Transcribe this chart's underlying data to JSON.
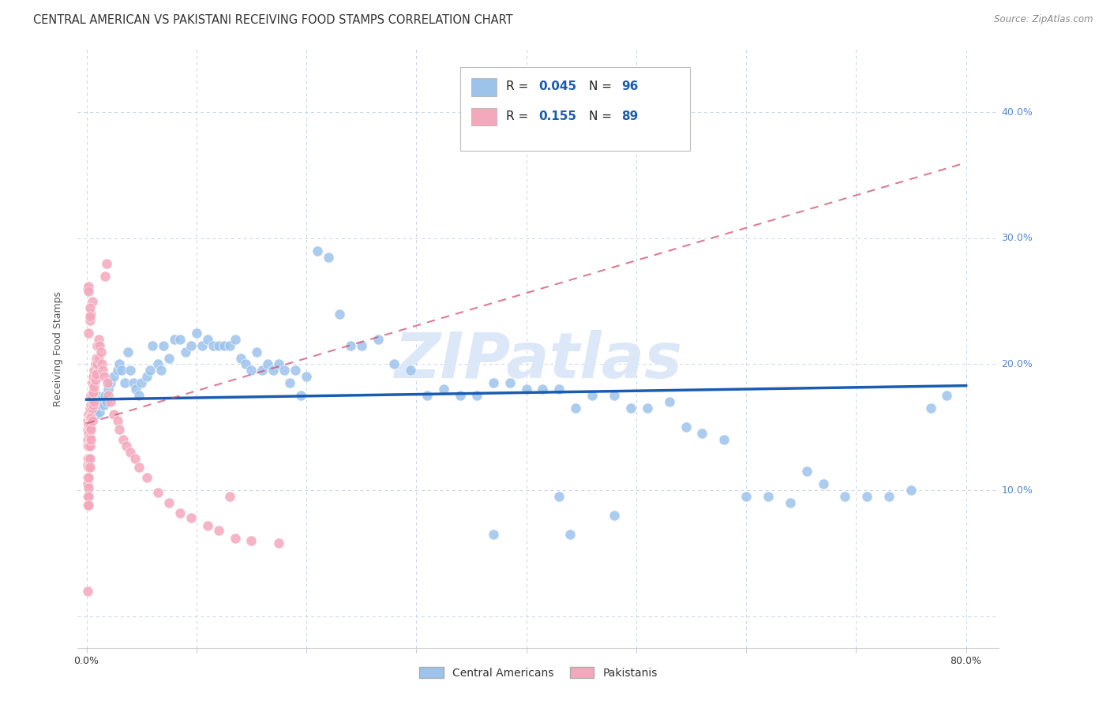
{
  "title": "CENTRAL AMERICAN VS PAKISTANI RECEIVING FOOD STAMPS CORRELATION CHART",
  "source": "Source: ZipAtlas.com",
  "ylabel": "Receiving Food Stamps",
  "x_ticks": [
    0.0,
    0.1,
    0.2,
    0.3,
    0.4,
    0.5,
    0.6,
    0.7,
    0.8
  ],
  "x_tick_labels": [
    "0.0%",
    "",
    "",
    "",
    "",
    "",
    "",
    "",
    "80.0%"
  ],
  "y_ticks": [
    0.0,
    0.1,
    0.2,
    0.3,
    0.4
  ],
  "y_tick_labels_right": [
    "",
    "10.0%",
    "20.0%",
    "30.0%",
    "40.0%"
  ],
  "xlim": [
    -0.008,
    0.83
  ],
  "ylim": [
    -0.025,
    0.45
  ],
  "legend_blue_label": "Central Americans",
  "legend_pink_label": "Pakistanis",
  "R_blue": 0.045,
  "N_blue": 96,
  "R_pink": 0.155,
  "N_pink": 89,
  "blue_color": "#9dc3eb",
  "pink_color": "#f4a8bc",
  "blue_line_color": "#1a5cb0",
  "pink_line_color": "#d05070",
  "watermark": "ZIPatlas",
  "watermark_color": "#dce8f8",
  "background_color": "#ffffff",
  "grid_color": "#c8d4e8",
  "title_color": "#333333",
  "source_color": "#888888",
  "ytick_color": "#5588cc",
  "xtick_color": "#333333",
  "blue_x": [
    0.005,
    0.007,
    0.009,
    0.01,
    0.012,
    0.013,
    0.015,
    0.016,
    0.017,
    0.018,
    0.02,
    0.022,
    0.025,
    0.028,
    0.03,
    0.032,
    0.035,
    0.038,
    0.04,
    0.043,
    0.045,
    0.048,
    0.05,
    0.055,
    0.058,
    0.06,
    0.065,
    0.068,
    0.07,
    0.075,
    0.08,
    0.085,
    0.09,
    0.095,
    0.1,
    0.105,
    0.11,
    0.115,
    0.12,
    0.125,
    0.13,
    0.135,
    0.14,
    0.145,
    0.15,
    0.155,
    0.16,
    0.165,
    0.17,
    0.175,
    0.18,
    0.185,
    0.19,
    0.195,
    0.2,
    0.21,
    0.22,
    0.23,
    0.24,
    0.25,
    0.265,
    0.28,
    0.295,
    0.31,
    0.325,
    0.34,
    0.355,
    0.37,
    0.385,
    0.4,
    0.415,
    0.43,
    0.445,
    0.46,
    0.48,
    0.495,
    0.51,
    0.53,
    0.545,
    0.56,
    0.58,
    0.6,
    0.62,
    0.64,
    0.655,
    0.67,
    0.69,
    0.71,
    0.73,
    0.75,
    0.768,
    0.782,
    0.43,
    0.48,
    0.37,
    0.44
  ],
  "blue_y": [
    0.17,
    0.165,
    0.16,
    0.175,
    0.162,
    0.168,
    0.172,
    0.168,
    0.175,
    0.17,
    0.18,
    0.185,
    0.19,
    0.195,
    0.2,
    0.195,
    0.185,
    0.21,
    0.195,
    0.185,
    0.18,
    0.175,
    0.185,
    0.19,
    0.195,
    0.215,
    0.2,
    0.195,
    0.215,
    0.205,
    0.22,
    0.22,
    0.21,
    0.215,
    0.225,
    0.215,
    0.22,
    0.215,
    0.215,
    0.215,
    0.215,
    0.22,
    0.205,
    0.2,
    0.195,
    0.21,
    0.195,
    0.2,
    0.195,
    0.2,
    0.195,
    0.185,
    0.195,
    0.175,
    0.19,
    0.29,
    0.285,
    0.24,
    0.215,
    0.215,
    0.22,
    0.2,
    0.195,
    0.175,
    0.18,
    0.175,
    0.175,
    0.185,
    0.185,
    0.18,
    0.18,
    0.18,
    0.165,
    0.175,
    0.175,
    0.165,
    0.165,
    0.17,
    0.15,
    0.145,
    0.14,
    0.095,
    0.095,
    0.09,
    0.115,
    0.105,
    0.095,
    0.095,
    0.095,
    0.1,
    0.165,
    0.175,
    0.095,
    0.08,
    0.065,
    0.065
  ],
  "pink_x": [
    0.001,
    0.001,
    0.001,
    0.001,
    0.001,
    0.001,
    0.001,
    0.001,
    0.001,
    0.001,
    0.002,
    0.002,
    0.002,
    0.002,
    0.002,
    0.002,
    0.002,
    0.002,
    0.002,
    0.002,
    0.003,
    0.003,
    0.003,
    0.003,
    0.003,
    0.003,
    0.003,
    0.004,
    0.004,
    0.004,
    0.004,
    0.004,
    0.005,
    0.005,
    0.005,
    0.005,
    0.006,
    0.006,
    0.006,
    0.007,
    0.007,
    0.007,
    0.008,
    0.008,
    0.009,
    0.009,
    0.01,
    0.01,
    0.011,
    0.011,
    0.012,
    0.013,
    0.014,
    0.015,
    0.016,
    0.017,
    0.018,
    0.019,
    0.02,
    0.022,
    0.025,
    0.028,
    0.03,
    0.033,
    0.036,
    0.04,
    0.044,
    0.048,
    0.055,
    0.065,
    0.075,
    0.085,
    0.095,
    0.11,
    0.12,
    0.135,
    0.15,
    0.175,
    0.13,
    0.002,
    0.003,
    0.004,
    0.005,
    0.001,
    0.001,
    0.002,
    0.002,
    0.003,
    0.003
  ],
  "pink_y": [
    0.155,
    0.148,
    0.14,
    0.135,
    0.125,
    0.12,
    0.11,
    0.105,
    0.095,
    0.088,
    0.16,
    0.152,
    0.145,
    0.135,
    0.125,
    0.118,
    0.11,
    0.102,
    0.095,
    0.088,
    0.165,
    0.158,
    0.15,
    0.142,
    0.135,
    0.125,
    0.118,
    0.175,
    0.168,
    0.158,
    0.148,
    0.14,
    0.185,
    0.175,
    0.165,
    0.155,
    0.19,
    0.178,
    0.168,
    0.195,
    0.182,
    0.17,
    0.2,
    0.188,
    0.205,
    0.192,
    0.215,
    0.2,
    0.22,
    0.205,
    0.215,
    0.21,
    0.2,
    0.195,
    0.19,
    0.27,
    0.28,
    0.185,
    0.175,
    0.17,
    0.16,
    0.155,
    0.148,
    0.14,
    0.135,
    0.13,
    0.125,
    0.118,
    0.11,
    0.098,
    0.09,
    0.082,
    0.078,
    0.072,
    0.068,
    0.062,
    0.06,
    0.058,
    0.095,
    0.225,
    0.235,
    0.24,
    0.25,
    0.26,
    0.02,
    0.262,
    0.258,
    0.245,
    0.238
  ],
  "blue_trend_start_y": 0.172,
  "blue_trend_end_y": 0.183,
  "pink_trend_start_y": 0.153,
  "pink_trend_end_y": 0.36
}
